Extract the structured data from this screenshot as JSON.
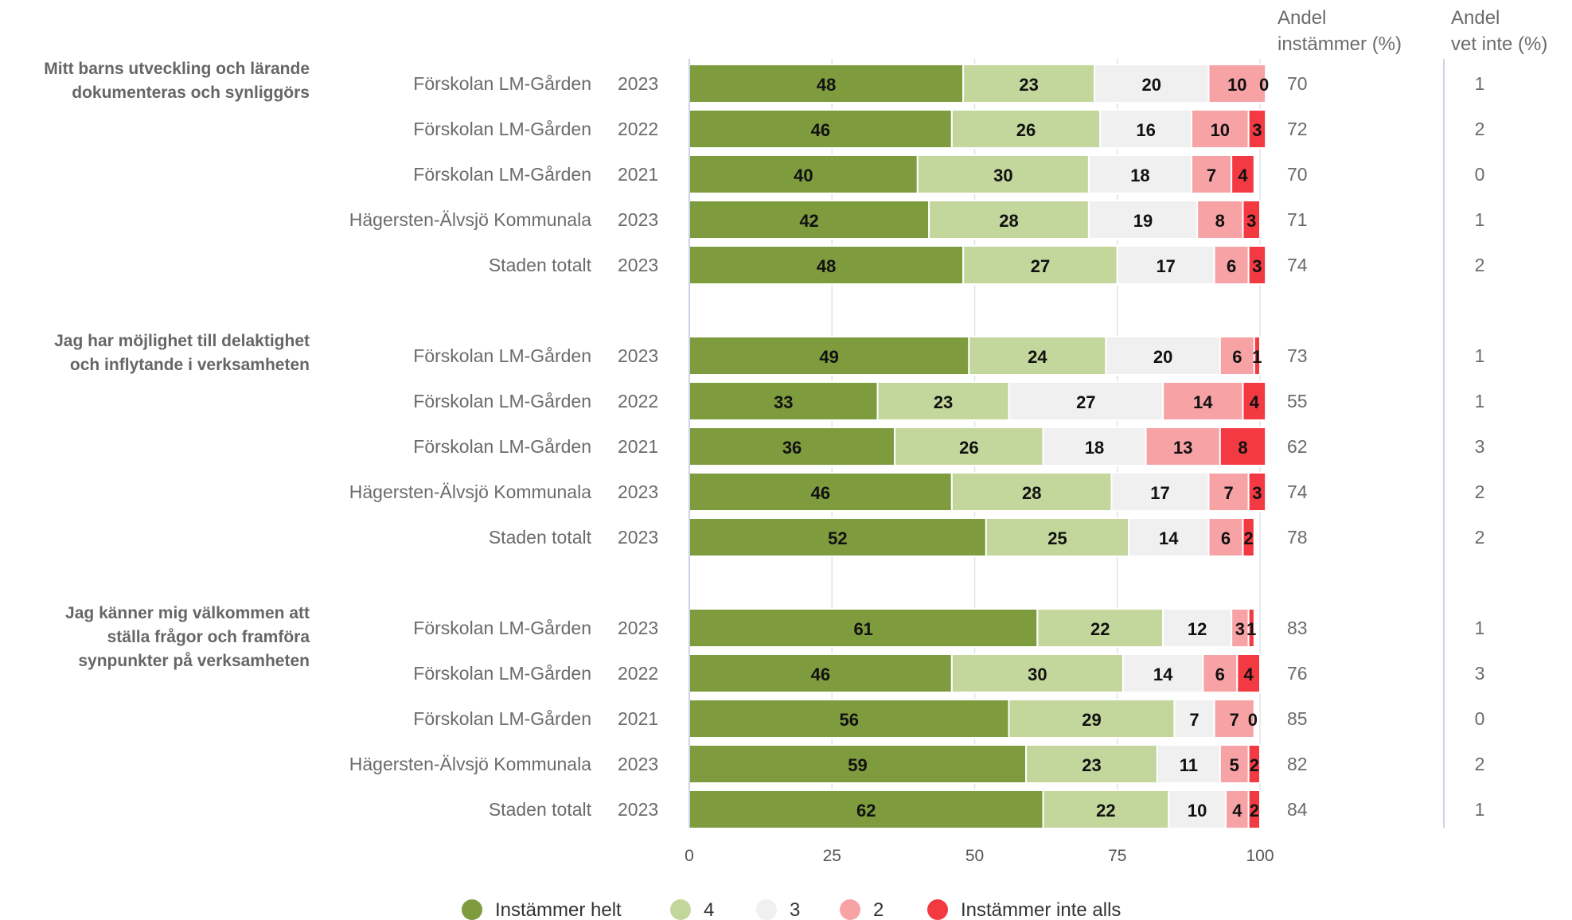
{
  "chart_data": {
    "type": "bar",
    "orientation": "horizontal",
    "stacked": true,
    "xlim": [
      0,
      100
    ],
    "x_ticks": [
      "0",
      "25",
      "50",
      "75",
      "100"
    ],
    "grid": true,
    "legend_position": "bottom-center",
    "series": [
      {
        "name": "Instämmer helt",
        "color": "#7e9c3e"
      },
      {
        "name": "4",
        "color": "#c3d69b"
      },
      {
        "name": "3",
        "color": "#f0f0f0"
      },
      {
        "name": "2",
        "color": "#f7a3a6"
      },
      {
        "name": "Instämmer inte alls",
        "color": "#f33a43"
      }
    ],
    "column_headers": {
      "andel_instammer": [
        "Andel",
        "instämmer (%)"
      ],
      "andel_vet_inte": [
        "Andel",
        "vet inte (%)"
      ]
    },
    "groups": [
      {
        "question": [
          "Mitt barns utveckling och lärande",
          "dokumenteras och synliggörs"
        ],
        "rows": [
          {
            "unit": "Förskolan LM-Gården",
            "year": "2023",
            "values": [
              48,
              23,
              20,
              10,
              0
            ],
            "andel_instammer": "70",
            "andel_vet_inte": "1"
          },
          {
            "unit": "Förskolan LM-Gården",
            "year": "2022",
            "values": [
              46,
              26,
              16,
              10,
              3
            ],
            "andel_instammer": "72",
            "andel_vet_inte": "2"
          },
          {
            "unit": "Förskolan LM-Gården",
            "year": "2021",
            "values": [
              40,
              30,
              18,
              7,
              4
            ],
            "andel_instammer": "70",
            "andel_vet_inte": "0"
          },
          {
            "unit": "Hägersten-Älvsjö Kommunala",
            "year": "2023",
            "values": [
              42,
              28,
              19,
              8,
              3
            ],
            "andel_instammer": "71",
            "andel_vet_inte": "1"
          },
          {
            "unit": "Staden totalt",
            "year": "2023",
            "values": [
              48,
              27,
              17,
              6,
              3
            ],
            "andel_instammer": "74",
            "andel_vet_inte": "2"
          }
        ]
      },
      {
        "question": [
          "Jag har möjlighet till delaktighet",
          "och inflytande i verksamheten"
        ],
        "rows": [
          {
            "unit": "Förskolan LM-Gården",
            "year": "2023",
            "values": [
              49,
              24,
              20,
              6,
              1
            ],
            "andel_instammer": "73",
            "andel_vet_inte": "1"
          },
          {
            "unit": "Förskolan LM-Gården",
            "year": "2022",
            "values": [
              33,
              23,
              27,
              14,
              4
            ],
            "andel_instammer": "55",
            "andel_vet_inte": "1"
          },
          {
            "unit": "Förskolan LM-Gården",
            "year": "2021",
            "values": [
              36,
              26,
              18,
              13,
              8
            ],
            "andel_instammer": "62",
            "andel_vet_inte": "3"
          },
          {
            "unit": "Hägersten-Älvsjö Kommunala",
            "year": "2023",
            "values": [
              46,
              28,
              17,
              7,
              3
            ],
            "andel_instammer": "74",
            "andel_vet_inte": "2"
          },
          {
            "unit": "Staden totalt",
            "year": "2023",
            "values": [
              52,
              25,
              14,
              6,
              2
            ],
            "andel_instammer": "78",
            "andel_vet_inte": "2"
          }
        ]
      },
      {
        "question": [
          "Jag känner mig välkommen att",
          "ställa frågor och framföra",
          "synpunkter på verksamheten"
        ],
        "rows": [
          {
            "unit": "Förskolan LM-Gården",
            "year": "2023",
            "values": [
              61,
              22,
              12,
              3,
              1
            ],
            "andel_instammer": "83",
            "andel_vet_inte": "1"
          },
          {
            "unit": "Förskolan LM-Gården",
            "year": "2022",
            "values": [
              46,
              30,
              14,
              6,
              4
            ],
            "andel_instammer": "76",
            "andel_vet_inte": "3"
          },
          {
            "unit": "Förskolan LM-Gården",
            "year": "2021",
            "values": [
              56,
              29,
              7,
              7,
              0
            ],
            "andel_instammer": "85",
            "andel_vet_inte": "0"
          },
          {
            "unit": "Hägersten-Älvsjö Kommunala",
            "year": "2023",
            "values": [
              59,
              23,
              11,
              5,
              2
            ],
            "andel_instammer": "82",
            "andel_vet_inte": "2"
          },
          {
            "unit": "Staden totalt",
            "year": "2023",
            "values": [
              62,
              22,
              10,
              4,
              2
            ],
            "andel_instammer": "84",
            "andel_vet_inte": "1"
          }
        ]
      }
    ]
  }
}
